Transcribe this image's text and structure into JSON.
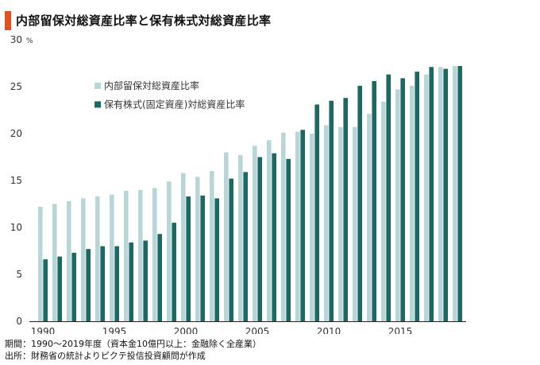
{
  "title": "内部留保対総資産比率と保有株式対総資産比率",
  "colors": {
    "title_accent": "#e0521e",
    "series_light": "#b9d5d5",
    "series_dark": "#1a6a64"
  },
  "chart_data": {
    "type": "bar",
    "ylim": [
      0,
      30
    ],
    "y_ticks": [
      "0",
      "5",
      "10",
      "15",
      "20",
      "25",
      "30"
    ],
    "y_unit": "%",
    "x_ticks": [
      "1990",
      "1995",
      "2000",
      "2005",
      "2010",
      "2015"
    ],
    "grid": false,
    "legend_position": "top-left",
    "categories": [
      "1990",
      "1991",
      "1992",
      "1993",
      "1994",
      "1995",
      "1996",
      "1997",
      "1998",
      "1999",
      "2000",
      "2001",
      "2002",
      "2003",
      "2004",
      "2005",
      "2006",
      "2007",
      "2008",
      "2009",
      "2010",
      "2011",
      "2012",
      "2013",
      "2014",
      "2015",
      "2016",
      "2017",
      "2018",
      "2019"
    ],
    "series": [
      {
        "name": "内部留保対総資産比率",
        "color": "#b9d5d5",
        "values": [
          12.2,
          12.5,
          12.8,
          13.1,
          13.3,
          13.5,
          13.9,
          14.0,
          14.2,
          14.9,
          15.8,
          15.4,
          16.0,
          18.0,
          17.7,
          18.7,
          19.3,
          20.1,
          20.2,
          20.0,
          20.9,
          20.7,
          20.7,
          22.1,
          23.4,
          24.7,
          25.1,
          26.3,
          27.1,
          27.2
        ],
        "label_bind": "chart_data.series.0.name"
      },
      {
        "name": "保有株式(固定資産)対総資産比率",
        "color": "#1a6a64",
        "values": [
          6.6,
          6.9,
          7.3,
          7.7,
          8.0,
          8.0,
          8.4,
          8.6,
          9.3,
          10.5,
          13.3,
          13.4,
          13.1,
          15.2,
          15.9,
          17.5,
          17.9,
          17.3,
          20.4,
          23.1,
          23.5,
          23.8,
          25.1,
          25.6,
          26.3,
          25.9,
          26.6,
          27.1,
          26.9,
          27.2
        ],
        "label_bind": "chart_data.series.1.name"
      }
    ]
  },
  "footnotes": {
    "period": "期間：1990～2019年度（資本金10億円以上：金融除く全産業）",
    "source": "出所：財務省の統計よりピクテ投信投資顧問が作成"
  }
}
